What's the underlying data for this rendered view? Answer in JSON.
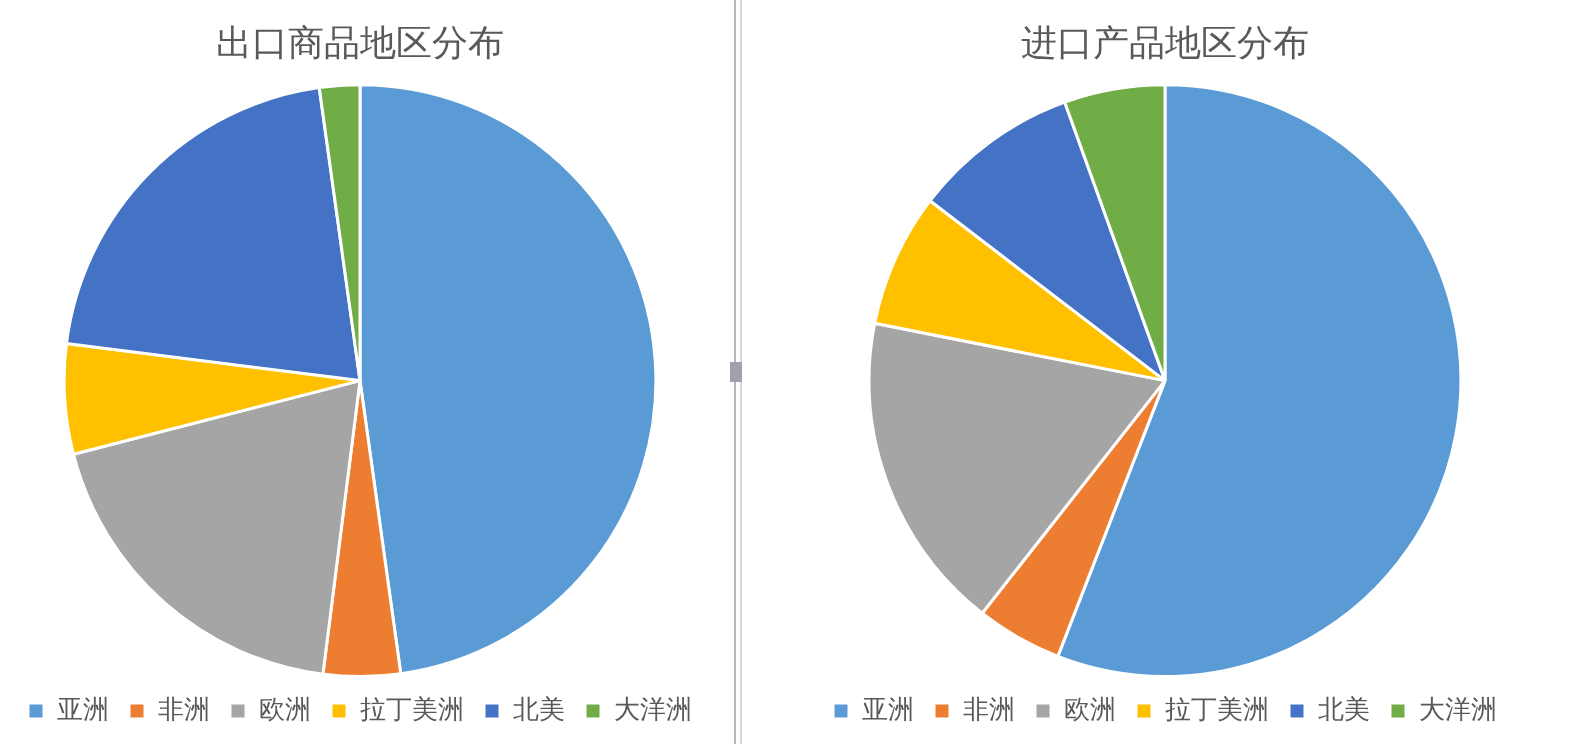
{
  "chart_data": [
    {
      "type": "pie",
      "title": "出口商品地区分布",
      "categories": [
        "亚洲",
        "非洲",
        "欧洲",
        "拉丁美洲",
        "北美",
        "大洋洲"
      ],
      "values": [
        47.8,
        4.2,
        19.0,
        6.0,
        20.8,
        2.2
      ],
      "colors": [
        "#5b9bd5",
        "#ed7d31",
        "#a5a5a5",
        "#ffc000",
        "#4472c4",
        "#70ad47"
      ],
      "legend": "bottom"
    },
    {
      "type": "pie",
      "title": "进口产品地区分布",
      "categories": [
        "亚洲",
        "非洲",
        "欧洲",
        "拉丁美洲",
        "北美",
        "大洋洲"
      ],
      "values": [
        55.9,
        4.7,
        17.5,
        7.3,
        9.1,
        5.5
      ],
      "colors": [
        "#5b9bd5",
        "#ed7d31",
        "#a5a5a5",
        "#ffc000",
        "#4472c4",
        "#70ad47"
      ],
      "legend": "bottom"
    }
  ]
}
